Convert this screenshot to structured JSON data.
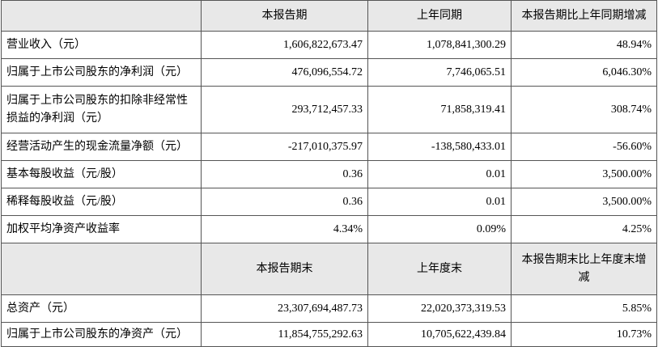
{
  "table": {
    "header": [
      "",
      "本报告期",
      "上年同期",
      "本报告期比上年同期增减"
    ],
    "rows": [
      [
        "营业收入（元）",
        "1,606,822,673.47",
        "1,078,841,300.29",
        "48.94%"
      ],
      [
        "归属于上市公司股东的净利润（元）",
        "476,096,554.72",
        "7,746,065.51",
        "6,046.30%"
      ],
      [
        "归属于上市公司股东的扣除非经常性损益的净利润（元）",
        "293,712,457.33",
        "71,858,319.41",
        "308.74%"
      ],
      [
        "经营活动产生的现金流量净额（元）",
        "-217,010,375.97",
        "-138,580,433.01",
        "-56.60%"
      ],
      [
        "基本每股收益（元/股）",
        "0.36",
        "0.01",
        "3,500.00%"
      ],
      [
        "稀释每股收益（元/股）",
        "0.36",
        "0.01",
        "3,500.00%"
      ],
      [
        "加权平均净资产收益率",
        "4.34%",
        "0.09%",
        "4.25%"
      ]
    ],
    "header2": [
      "",
      "本报告期末",
      "上年度末",
      "本报告期末比上年度末增减"
    ],
    "rows2": [
      [
        "总资产（元）",
        "23,307,694,487.73",
        "22,020,373,319.53",
        "5.85%"
      ],
      [
        "归属于上市公司股东的净资产（元）",
        "11,854,755,292.63",
        "10,705,622,439.84",
        "10.73%"
      ]
    ]
  }
}
